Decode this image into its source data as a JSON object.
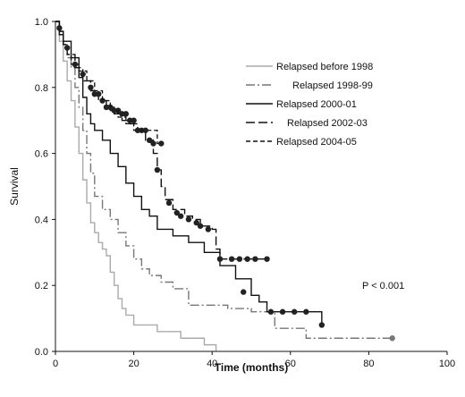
{
  "chart_data": {
    "type": "line",
    "step": true,
    "xlabel": "Time (months)",
    "ylabel": "Survival",
    "xlim": [
      0,
      100
    ],
    "ylim": [
      0,
      1.0
    ],
    "xticks": [
      0,
      20,
      40,
      60,
      80,
      100
    ],
    "yticks": [
      0.0,
      0.2,
      0.4,
      0.6,
      0.8,
      1.0
    ],
    "ytick_labels": [
      "0.0",
      "0.2",
      "0.4",
      "0.6",
      "0.8",
      "1.0"
    ],
    "grid": false,
    "legend_position": "top-right",
    "annotation": "P < 0.001",
    "series": [
      {
        "name": "Relapsed before 1998",
        "color": "#aaaaaa",
        "dash": "solid",
        "points": [
          [
            0,
            1.0
          ],
          [
            1,
            0.94
          ],
          [
            2,
            0.88
          ],
          [
            3,
            0.82
          ],
          [
            4,
            0.76
          ],
          [
            5,
            0.68
          ],
          [
            6,
            0.6
          ],
          [
            7,
            0.52
          ],
          [
            8,
            0.45
          ],
          [
            9,
            0.39
          ],
          [
            10,
            0.36
          ],
          [
            11,
            0.33
          ],
          [
            12,
            0.31
          ],
          [
            13,
            0.29
          ],
          [
            14,
            0.24
          ],
          [
            15,
            0.2
          ],
          [
            16,
            0.16
          ],
          [
            17,
            0.13
          ],
          [
            18,
            0.11
          ],
          [
            20,
            0.08
          ],
          [
            22,
            0.08
          ],
          [
            26,
            0.06
          ],
          [
            32,
            0.04
          ],
          [
            38,
            0.02
          ],
          [
            41,
            0.0
          ]
        ]
      },
      {
        "name": "Relapsed 1998-99",
        "color": "#777777",
        "dash": "dashdot",
        "points": [
          [
            0,
            1.0
          ],
          [
            1,
            0.96
          ],
          [
            2,
            0.93
          ],
          [
            3,
            0.89
          ],
          [
            4,
            0.86
          ],
          [
            5,
            0.8
          ],
          [
            6,
            0.74
          ],
          [
            7,
            0.67
          ],
          [
            8,
            0.6
          ],
          [
            9,
            0.54
          ],
          [
            10,
            0.47
          ],
          [
            12,
            0.43
          ],
          [
            14,
            0.4
          ],
          [
            16,
            0.36
          ],
          [
            18,
            0.32
          ],
          [
            20,
            0.28
          ],
          [
            22,
            0.25
          ],
          [
            24,
            0.23
          ],
          [
            27,
            0.21
          ],
          [
            30,
            0.19
          ],
          [
            34,
            0.14
          ],
          [
            38,
            0.14
          ],
          [
            44,
            0.13
          ],
          [
            50,
            0.12
          ],
          [
            56,
            0.07
          ],
          [
            64,
            0.04
          ],
          [
            86,
            0.04
          ]
        ],
        "censored": [
          [
            86,
            0.04
          ]
        ]
      },
      {
        "name": "Relapsed 2000-01",
        "color": "#111111",
        "dash": "solid",
        "points": [
          [
            0,
            1.0
          ],
          [
            1,
            0.97
          ],
          [
            2,
            0.94
          ],
          [
            4,
            0.89
          ],
          [
            6,
            0.83
          ],
          [
            7,
            0.77
          ],
          [
            8,
            0.72
          ],
          [
            9,
            0.69
          ],
          [
            10,
            0.67
          ],
          [
            12,
            0.64
          ],
          [
            14,
            0.6
          ],
          [
            16,
            0.56
          ],
          [
            18,
            0.51
          ],
          [
            20,
            0.47
          ],
          [
            22,
            0.43
          ],
          [
            24,
            0.41
          ],
          [
            26,
            0.37
          ],
          [
            30,
            0.35
          ],
          [
            34,
            0.33
          ],
          [
            38,
            0.3
          ],
          [
            42,
            0.26
          ],
          [
            46,
            0.22
          ],
          [
            50,
            0.17
          ],
          [
            52,
            0.15
          ],
          [
            54,
            0.12
          ],
          [
            64,
            0.12
          ],
          [
            68,
            0.08
          ]
        ],
        "censored": [
          [
            48,
            0.18
          ],
          [
            55,
            0.12
          ],
          [
            58,
            0.12
          ],
          [
            61,
            0.12
          ],
          [
            64,
            0.12
          ],
          [
            68,
            0.08
          ]
        ]
      },
      {
        "name": "Relapsed 2002-03",
        "color": "#111111",
        "dash": "longdash",
        "points": [
          [
            0,
            1.0
          ],
          [
            1,
            0.96
          ],
          [
            2,
            0.93
          ],
          [
            3,
            0.9
          ],
          [
            5,
            0.86
          ],
          [
            7,
            0.82
          ],
          [
            9,
            0.79
          ],
          [
            11,
            0.76
          ],
          [
            13,
            0.74
          ],
          [
            15,
            0.72
          ],
          [
            17,
            0.7
          ],
          [
            19,
            0.69
          ],
          [
            21,
            0.67
          ],
          [
            23,
            0.64
          ],
          [
            25,
            0.6
          ],
          [
            26,
            0.55
          ],
          [
            27,
            0.5
          ],
          [
            28,
            0.46
          ],
          [
            30,
            0.43
          ],
          [
            33,
            0.41
          ],
          [
            35,
            0.4
          ],
          [
            37,
            0.38
          ],
          [
            40,
            0.37
          ],
          [
            41,
            0.31
          ],
          [
            42,
            0.28
          ],
          [
            54,
            0.28
          ]
        ],
        "censored": [
          [
            10,
            0.78
          ],
          [
            12,
            0.76
          ],
          [
            14,
            0.74
          ],
          [
            16,
            0.73
          ],
          [
            18,
            0.72
          ],
          [
            20,
            0.7
          ],
          [
            22,
            0.67
          ],
          [
            24,
            0.64
          ],
          [
            26,
            0.55
          ],
          [
            29,
            0.45
          ],
          [
            31,
            0.42
          ],
          [
            32,
            0.41
          ],
          [
            34,
            0.4
          ],
          [
            36,
            0.39
          ],
          [
            37,
            0.38
          ],
          [
            39,
            0.37
          ],
          [
            42,
            0.28
          ],
          [
            45,
            0.28
          ],
          [
            47,
            0.28
          ],
          [
            49,
            0.28
          ],
          [
            51,
            0.28
          ],
          [
            54,
            0.28
          ]
        ]
      },
      {
        "name": "Relapsed 2004-05",
        "color": "#111111",
        "dash": "shortdash",
        "points": [
          [
            0,
            1.0
          ],
          [
            1,
            0.97
          ],
          [
            2,
            0.93
          ],
          [
            3,
            0.9
          ],
          [
            4,
            0.87
          ],
          [
            6,
            0.85
          ],
          [
            8,
            0.82
          ],
          [
            10,
            0.79
          ],
          [
            12,
            0.76
          ],
          [
            14,
            0.73
          ],
          [
            16,
            0.71
          ],
          [
            18,
            0.69
          ],
          [
            20,
            0.67
          ],
          [
            22,
            0.67
          ],
          [
            26,
            0.63
          ],
          [
            27,
            0.63
          ]
        ],
        "censored": [
          [
            1,
            0.98
          ],
          [
            3,
            0.92
          ],
          [
            5,
            0.87
          ],
          [
            7,
            0.84
          ],
          [
            9,
            0.8
          ],
          [
            11,
            0.78
          ],
          [
            13,
            0.74
          ],
          [
            15,
            0.73
          ],
          [
            17,
            0.72
          ],
          [
            19,
            0.7
          ],
          [
            21,
            0.67
          ],
          [
            23,
            0.67
          ],
          [
            25,
            0.63
          ],
          [
            27,
            0.63
          ]
        ]
      }
    ]
  }
}
